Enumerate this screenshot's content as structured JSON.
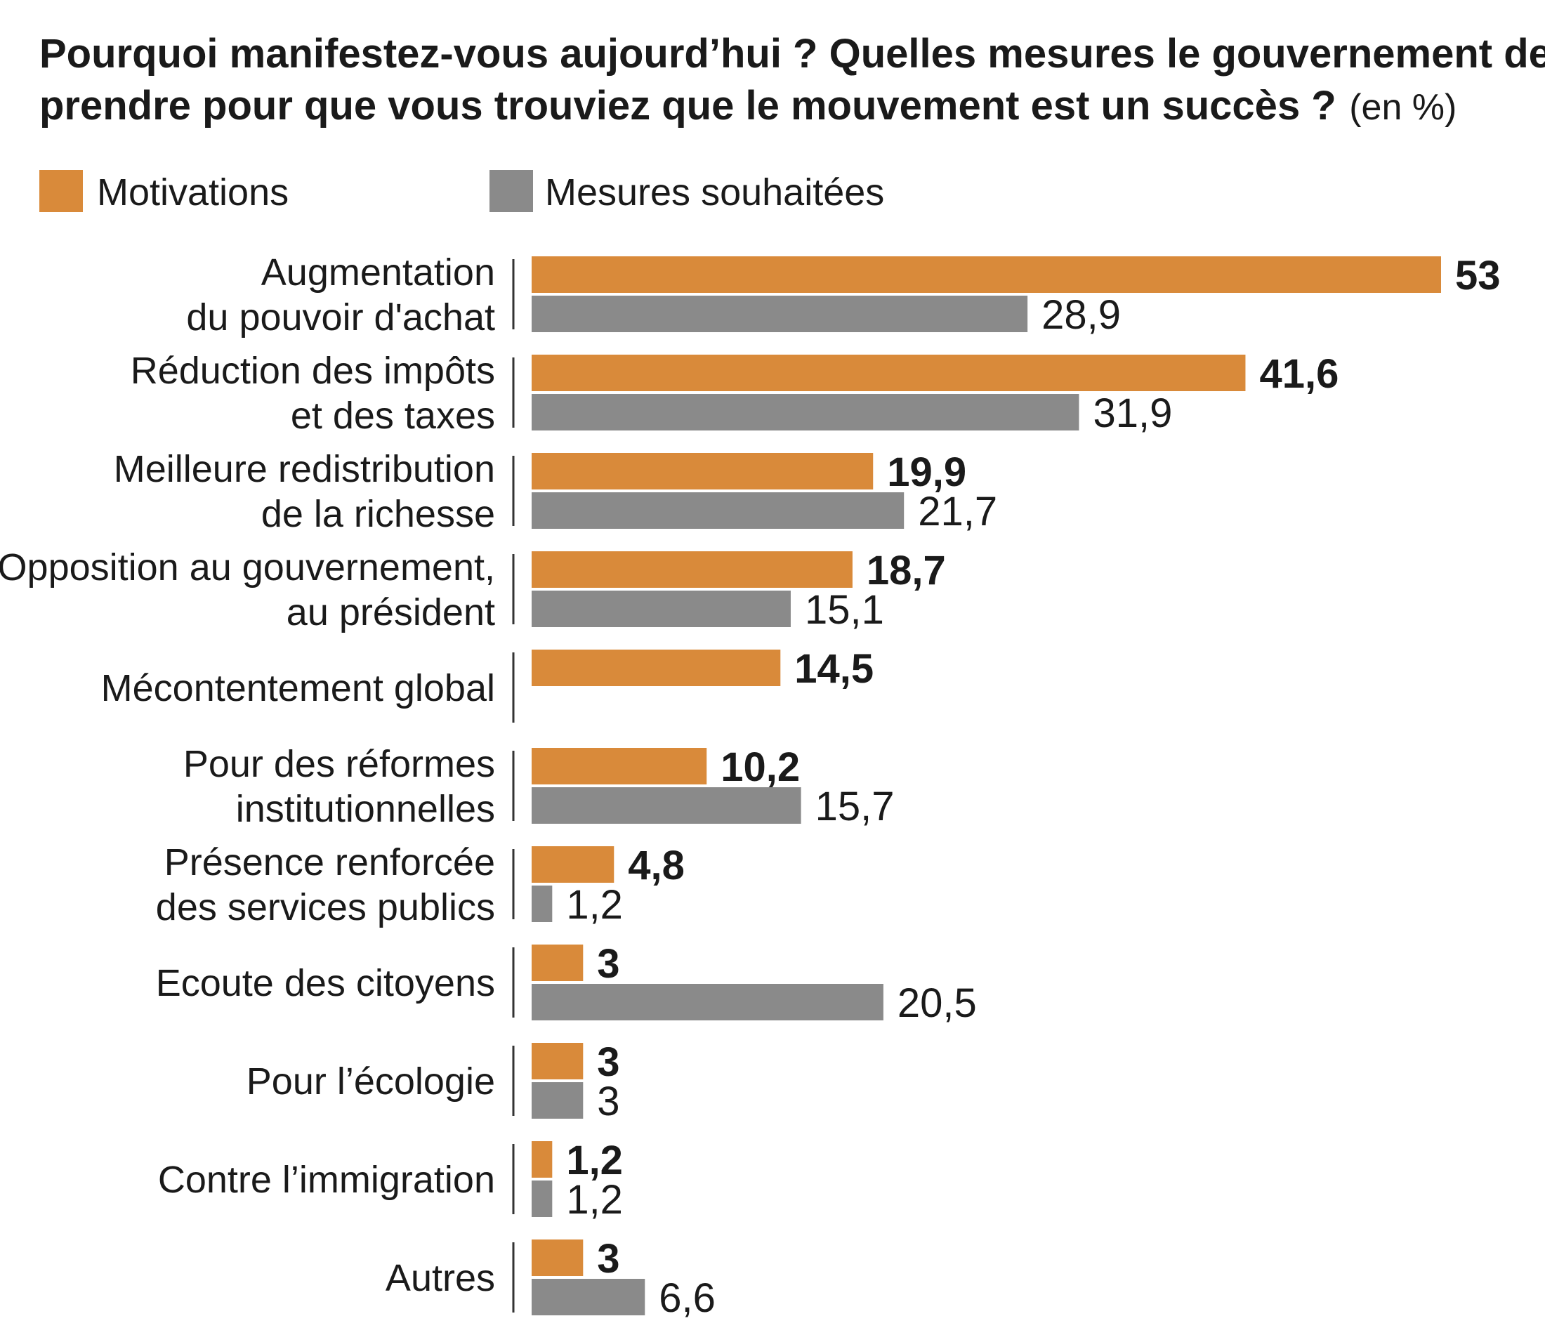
{
  "chart_data": {
    "type": "bar",
    "orientation": "horizontal",
    "title": "Pourquoi manifestez-vous aujourd’hui ? Quelles mesures le gouvernement devrait-il prendre pour que vous trouviez que le mouvement est un succès ?",
    "title_lines": [
      "Pourquoi manifestez-vous aujourd’hui ? Quelles mesures le gouvernement devrait-il",
      "prendre pour que vous trouviez que le mouvement est un succès ?"
    ],
    "unit": "(en %)",
    "legend_position": "top-left",
    "grid": false,
    "xlim": [
      0,
      53
    ],
    "categories": [
      [
        "Augmentation",
        "du pouvoir d'achat"
      ],
      [
        "Réduction des impôts",
        "et des taxes"
      ],
      [
        "Meilleure redistribution",
        "de la richesse"
      ],
      [
        "Opposition au gouvernement,",
        "au président"
      ],
      [
        "Mécontentement global"
      ],
      [
        "Pour des réformes",
        "institutionnelles"
      ],
      [
        "Présence renforcée",
        "des services publics"
      ],
      [
        "Ecoute des citoyens"
      ],
      [
        "Pour l’écologie"
      ],
      [
        "Contre l’immigration"
      ],
      [
        "Autres"
      ]
    ],
    "series": [
      {
        "name": "Motivations",
        "color": "#d98a3a",
        "values": [
          53,
          41.6,
          19.9,
          18.7,
          14.5,
          10.2,
          4.8,
          3,
          3,
          1.2,
          3
        ],
        "labels": [
          "53",
          "41,6",
          "19,9",
          "18,7",
          "14,5",
          "10,2",
          "4,8",
          "3",
          "3",
          "1,2",
          "3"
        ]
      },
      {
        "name": "Mesures souhaitées",
        "color": "#8a8a8a",
        "values": [
          28.9,
          31.9,
          21.7,
          15.1,
          null,
          15.7,
          1.2,
          20.5,
          3,
          1.2,
          6.6
        ],
        "labels": [
          "28,9",
          "31,9",
          "21,7",
          "15,1",
          "",
          "15,7",
          "1,2",
          "20,5",
          "3",
          "1,2",
          "6,6"
        ]
      }
    ]
  }
}
